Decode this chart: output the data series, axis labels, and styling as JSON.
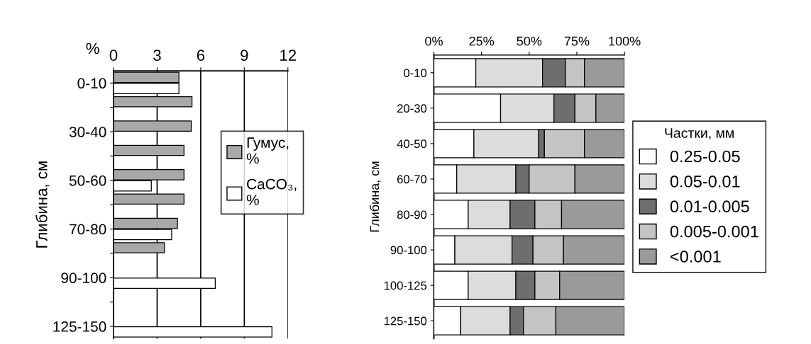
{
  "chart_data": [
    {
      "type": "bar",
      "orientation": "horizontal",
      "xlabel": "%",
      "ylabel": "Глибина, см",
      "categories": [
        "0-10",
        null,
        "30-40",
        null,
        "50-60",
        null,
        "70-80",
        null,
        "90-100",
        null,
        "125-150"
      ],
      "series": [
        {
          "name": "Гумус,\n%",
          "color": "#a8a8a8",
          "values": [
            4.5,
            5.4,
            5.35,
            4.85,
            4.85,
            4.85,
            4.4,
            3.5,
            null,
            null,
            null
          ]
        },
        {
          "name": "CaCO₃,\n%",
          "color": "#ffffff",
          "values": [
            4.5,
            null,
            null,
            null,
            2.6,
            null,
            4.0,
            null,
            7.0,
            null,
            10.9
          ]
        }
      ],
      "xlim": [
        0,
        12
      ],
      "xticks": [
        0,
        3,
        6,
        9,
        12
      ],
      "grid": "x",
      "legend": "right"
    },
    {
      "type": "bar",
      "orientation": "horizontal",
      "stacked": true,
      "ylabel": "Глибина, см",
      "legend_title": "Частки, мм",
      "categories": [
        "0-10",
        "20-30",
        "40-50",
        "60-70",
        "80-90",
        "90-100",
        "100-125",
        "125-150"
      ],
      "series": [
        {
          "name": "0.25-0.05",
          "color": "#ffffff",
          "values": [
            22,
            35,
            21,
            12,
            18,
            11,
            18,
            14
          ]
        },
        {
          "name": "0.05-0.01",
          "color": "#dcdcdc",
          "values": [
            35,
            28,
            34,
            31,
            22,
            30,
            25,
            26
          ]
        },
        {
          "name": "0.01-0.005",
          "color": "#6e6e6e",
          "values": [
            12,
            11,
            3,
            7,
            13,
            11,
            10,
            7
          ]
        },
        {
          "name": "0.005-0.001",
          "color": "#c4c4c4",
          "values": [
            10,
            11,
            21,
            24,
            14,
            16,
            13,
            17
          ]
        },
        {
          "name": "<0.001",
          "color": "#9a9a9a",
          "values": [
            21,
            15,
            21,
            26,
            33,
            32,
            34,
            36
          ]
        }
      ],
      "xlim": [
        0,
        100
      ],
      "xticks": [
        {
          "value": 0,
          "label": "0%"
        },
        {
          "value": 25,
          "label": "25%"
        },
        {
          "value": 50,
          "label": "50%"
        },
        {
          "value": 75,
          "label": "75%"
        },
        {
          "value": 100,
          "label": "100%"
        }
      ],
      "grid": false,
      "legend": "right"
    }
  ]
}
